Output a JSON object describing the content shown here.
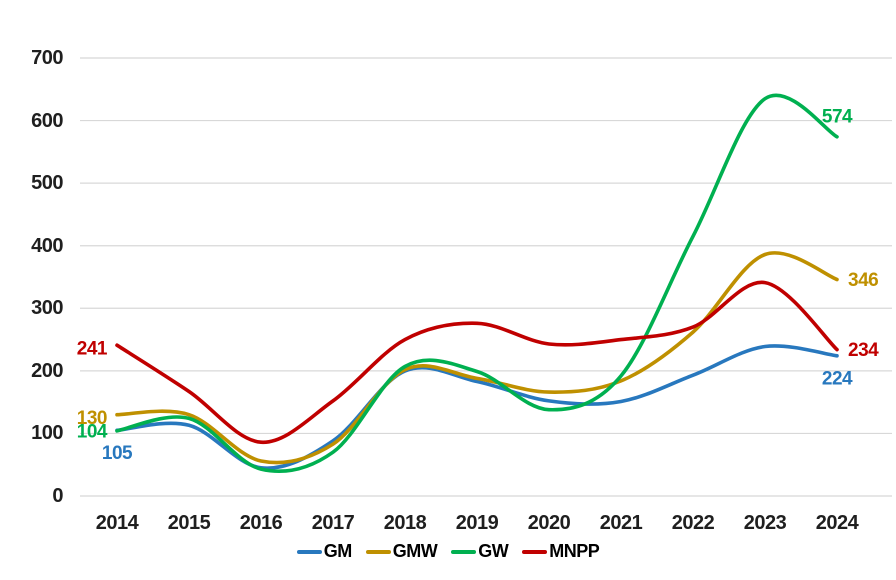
{
  "chart_data": {
    "type": "line",
    "title": "",
    "categories": [
      "2014",
      "2015",
      "2016",
      "2017",
      "2018",
      "2019",
      "2020",
      "2021",
      "2022",
      "2023",
      "2024"
    ],
    "series": [
      {
        "name": "GM",
        "color": "#2878BE",
        "values": [
          105,
          113,
          45,
          88,
          200,
          183,
          152,
          151,
          193,
          239,
          224
        ],
        "first_value_label": "105",
        "last_value_label": "224"
      },
      {
        "name": "GMW",
        "color": "#BF9000",
        "values": [
          130,
          130,
          56,
          83,
          202,
          188,
          166,
          184,
          262,
          386,
          346
        ],
        "first_value_label": "130",
        "last_value_label": "346"
      },
      {
        "name": "GW",
        "color": "#00B050",
        "values": [
          104,
          124,
          43,
          70,
          207,
          199,
          138,
          192,
          415,
          635,
          574
        ],
        "first_value_label": "104",
        "last_value_label": "574"
      },
      {
        "name": "MNPP",
        "color": "#C00000",
        "values": [
          241,
          167,
          86,
          152,
          250,
          276,
          243,
          250,
          270,
          341,
          234
        ],
        "first_value_label": "241",
        "last_value_label": "234"
      }
    ],
    "y_ticks": [
      "0",
      "100",
      "200",
      "300",
      "400",
      "500",
      "600",
      "700"
    ],
    "ylim": [
      0,
      700
    ],
    "xlabel": "",
    "ylabel": "",
    "grid": true,
    "legend_position": "bottom",
    "gridline_color": "#D8D8D8",
    "axis_label_color": "#1F1F1F",
    "background_color": "#FFFFFF"
  }
}
